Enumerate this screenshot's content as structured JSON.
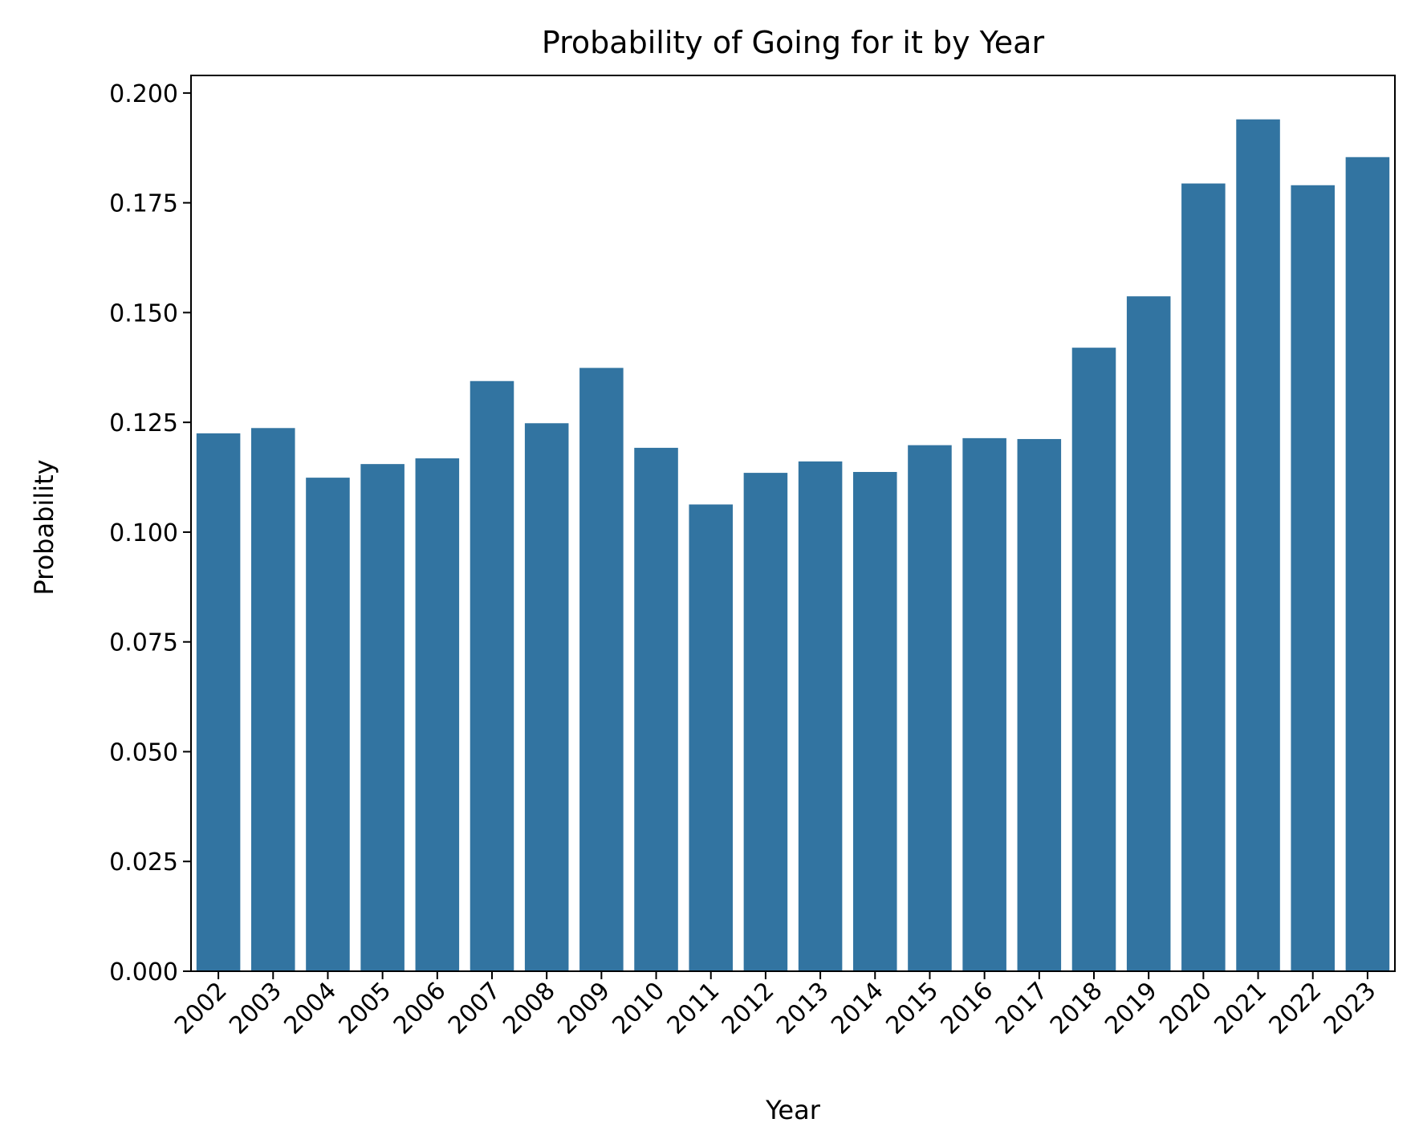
{
  "chart_data": {
    "type": "bar",
    "title": "Probability of Going for it by Year",
    "xlabel": "Year",
    "ylabel": "Probability",
    "categories": [
      "2002",
      "2003",
      "2004",
      "2005",
      "2006",
      "2007",
      "2008",
      "2009",
      "2010",
      "2011",
      "2012",
      "2013",
      "2014",
      "2015",
      "2016",
      "2017",
      "2018",
      "2019",
      "2020",
      "2021",
      "2022",
      "2023"
    ],
    "values": [
      0.1225,
      0.1237,
      0.1124,
      0.1155,
      0.1168,
      0.1344,
      0.1248,
      0.1374,
      0.1192,
      0.1063,
      0.1135,
      0.1161,
      0.1137,
      0.1198,
      0.1214,
      0.1212,
      0.142,
      0.1537,
      0.1794,
      0.194,
      0.179,
      0.1854
    ],
    "ylim": [
      0,
      0.204
    ],
    "yticks": [
      0.0,
      0.025,
      0.05,
      0.075,
      0.1,
      0.125,
      0.15,
      0.175,
      0.2
    ],
    "ytick_labels": [
      "0.000",
      "0.025",
      "0.050",
      "0.075",
      "0.100",
      "0.125",
      "0.150",
      "0.175",
      "0.200"
    ],
    "xtick_rotation": 45,
    "bar_color": "#3274a1",
    "grid": false,
    "legend": "none"
  }
}
